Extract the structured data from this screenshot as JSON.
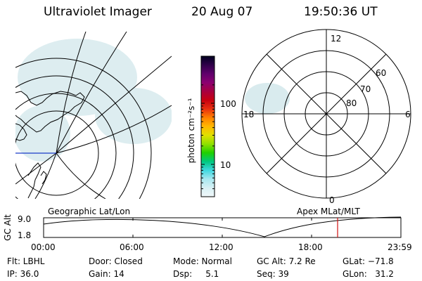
{
  "header": {
    "title": "Ultraviolet Imager",
    "date": "20 Aug 07",
    "time": "19:50:36 UT"
  },
  "colorbar": {
    "unit_label": "photon cm⁻²s⁻¹",
    "ticks": [
      {
        "label": "100",
        "value": 100
      },
      {
        "label": "10",
        "value": 10
      }
    ],
    "stops": [
      "#000020",
      "#30004a",
      "#60006c",
      "#8b0070",
      "#a80040",
      "#c80010",
      "#e83010",
      "#ff8000",
      "#ffb800",
      "#e0e000",
      "#90e000",
      "#20d000",
      "#00c880",
      "#40d8e0",
      "#a8e8f0",
      "#d8f0f4",
      "#f0f8fa"
    ]
  },
  "polar_plot": {
    "lat_rings": [
      "60",
      "70",
      "80"
    ],
    "mlt_labels": {
      "top": "12",
      "left": "18",
      "right": "6",
      "bottom": "0"
    }
  },
  "panel_labels": {
    "left": "Geographic Lat/Lon",
    "right": "Apex MLat/MLT"
  },
  "altitude_plot": {
    "ylabel": "GC Alt",
    "ytick_top": "9.0",
    "ytick_bottom": "1.8",
    "xticks": [
      "00:00",
      "06:00",
      "12:00",
      "18:00",
      "23:59"
    ],
    "current_time_marker_color": "#d01010"
  },
  "footer": {
    "filter": "Flt: LBHL",
    "ip": "IP: 36.0",
    "door": "Door: Closed",
    "gain": "Gain: 14",
    "mode": "Mode: Normal",
    "dsp": "Dsp:     5.1",
    "gc_alt": "GC Alt: 7.2 Re",
    "seq": "Seq: 39",
    "glat": "GLat: −71.8",
    "glon": "GLon:   31.2"
  }
}
